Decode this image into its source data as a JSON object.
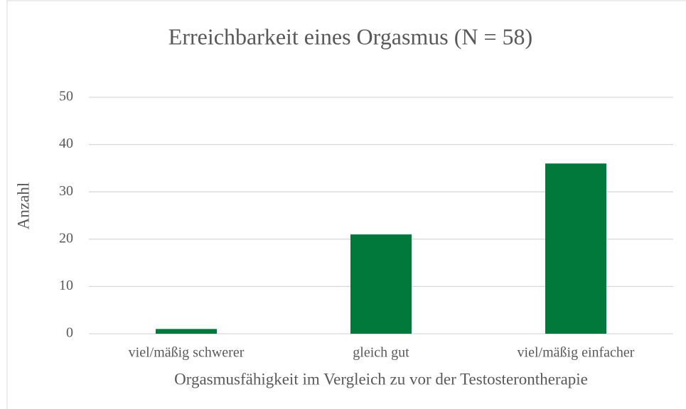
{
  "chart_data": {
    "type": "bar",
    "title": "Erreichbarkeit eines Orgasmus (N = 58)",
    "x_label": "Orgasmusfähigkeit im Vergleich zu vor der Testosterontherapie",
    "y_label": "Anzahl",
    "categories": [
      "viel/mäßig schwerer",
      "gleich gut",
      "viel/mäßig einfacher"
    ],
    "values": [
      1,
      21,
      36
    ],
    "color": "#00793a",
    "ylim": [
      0,
      50
    ],
    "yticks": [
      0,
      10,
      20,
      30,
      40,
      50
    ],
    "grid": true
  }
}
